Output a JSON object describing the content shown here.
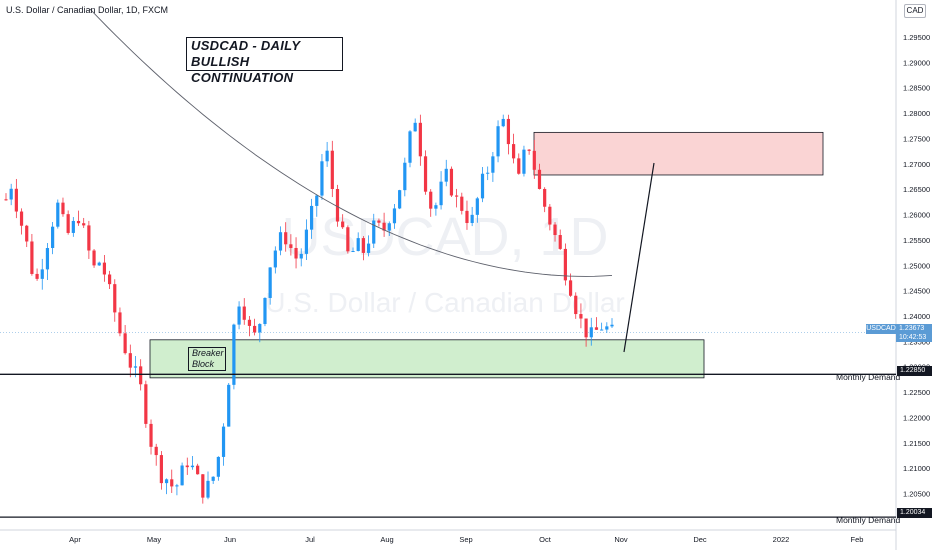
{
  "header": {
    "symbol_title": "U.S. Dollar / Canadian Dollar, 1D, FXCM",
    "currency_button": "CAD"
  },
  "watermark": {
    "ticker": "USDCAD, 1D",
    "name": "U.S. Dollar / Canadian Dollar"
  },
  "annotations": {
    "title_line1": "USDCAD - DAILY",
    "title_line2": "BULLISH CONTINUATION",
    "breaker_line1": "Breaker",
    "breaker_line2": "Block",
    "monthly_demand_upper": "Monthly Demand",
    "monthly_demand_lower": "Monthly Demand"
  },
  "price_scale": {
    "current_symbol": "USDCAD",
    "current_price": "1.23673",
    "countdown": "10:42:53",
    "level_upper": "1.22850",
    "level_lower": "1.20034"
  },
  "colors": {
    "up": "#2196f3",
    "down": "#f23645",
    "demand_zone": "#c8ebc5",
    "supply_zone": "#fad4d4",
    "moving_average": "#5d606b"
  },
  "chart_data": {
    "type": "candlestick",
    "symbol": "USDCAD",
    "timeframe": "1D",
    "y_ticks": [
      "1.20500",
      "1.21000",
      "1.21500",
      "1.22000",
      "1.22500",
      "1.23000",
      "1.23500",
      "1.24000",
      "1.24500",
      "1.25000",
      "1.25500",
      "1.26000",
      "1.26500",
      "1.27000",
      "1.27500",
      "1.28000",
      "1.28500",
      "1.29000",
      "1.29500"
    ],
    "ylim": [
      1.1978,
      1.3023
    ],
    "x_ticks": [
      "Apr",
      "May",
      "Jun",
      "Jul",
      "Aug",
      "Sep",
      "Oct",
      "Nov",
      "Dec",
      "2022",
      "Feb"
    ],
    "current_price": 1.23673,
    "horizontal_levels": [
      {
        "value": 1.2285,
        "label": "Monthly Demand"
      },
      {
        "value": 1.20034,
        "label": "Monthly Demand"
      }
    ],
    "zones": [
      {
        "type": "demand",
        "label": "Breaker Block",
        "from": 1.2278,
        "to": 1.2353
      },
      {
        "type": "supply",
        "from": 1.2678,
        "to": 1.2762
      }
    ],
    "trend_points": [
      1.263,
      1.266,
      1.262,
      1.258,
      1.254,
      1.249,
      1.247,
      1.251,
      1.255,
      1.259,
      1.262,
      1.258,
      1.256,
      1.258,
      1.26,
      1.256,
      1.252,
      1.249,
      1.251,
      1.248,
      1.244,
      1.24,
      1.236,
      1.233,
      1.23,
      1.228,
      1.225,
      1.219,
      1.214,
      1.211,
      1.208,
      1.208,
      1.206,
      1.207,
      1.21,
      1.212,
      1.209,
      1.207,
      1.205,
      1.207,
      1.209,
      1.214,
      1.222,
      1.231,
      1.242,
      1.244,
      1.239,
      1.236,
      1.236,
      1.241,
      1.248,
      1.252,
      1.254,
      1.256,
      1.255,
      1.252,
      1.251,
      1.254,
      1.258,
      1.262,
      1.266,
      1.275,
      1.268,
      1.262,
      1.258,
      1.253,
      1.251,
      1.255,
      1.252,
      1.254,
      1.257,
      1.258,
      1.256,
      1.259,
      1.261,
      1.264,
      1.268,
      1.272,
      1.281,
      1.275,
      1.268,
      1.262,
      1.261,
      1.264,
      1.268,
      1.266,
      1.263,
      1.262,
      1.26,
      1.258,
      1.262,
      1.266,
      1.268,
      1.272,
      1.276,
      1.279,
      1.276,
      1.271,
      1.266,
      1.271,
      1.274,
      1.27,
      1.265,
      1.262,
      1.259,
      1.256,
      1.253,
      1.249,
      1.246,
      1.242,
      1.239,
      1.237,
      1.236,
      1.237,
      1.238,
      1.2375,
      1.2367
    ]
  }
}
